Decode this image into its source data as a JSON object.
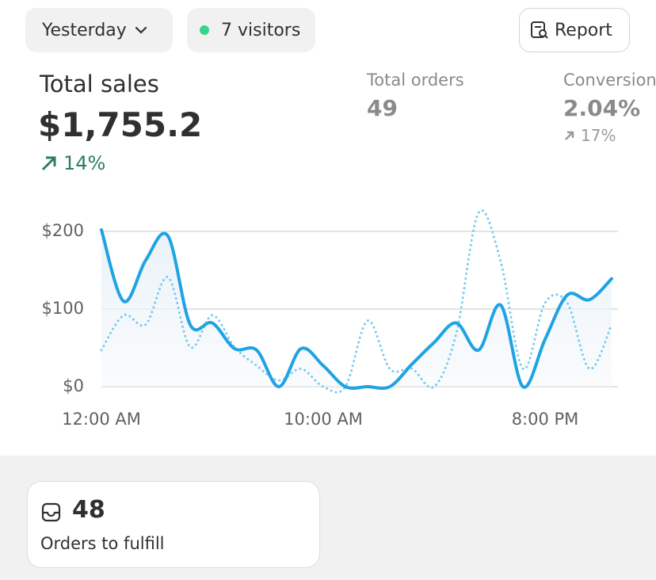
{
  "header": {
    "date_filter": "Yesterday",
    "visitors": "7 visitors",
    "report_button": "Report"
  },
  "metrics": [
    {
      "label": "Total sales",
      "value": "$1,755.2",
      "change": "14%"
    },
    {
      "label": "Total orders",
      "value": "49"
    },
    {
      "label": "Conversion",
      "value": "2.04%",
      "change": "17%"
    }
  ],
  "chart_data": {
    "type": "line",
    "x": [
      0,
      1,
      2,
      3,
      4,
      5,
      6,
      7,
      8,
      9,
      10,
      11,
      12,
      13,
      14,
      15,
      16,
      17,
      18,
      19,
      20,
      21,
      22,
      23
    ],
    "xlim": [
      0,
      23
    ],
    "xticks": [
      {
        "value": 0,
        "label": "12:00 AM"
      },
      {
        "value": 10,
        "label": "10:00 AM"
      },
      {
        "value": 20,
        "label": "8:00 PM"
      }
    ],
    "ylim": [
      0,
      230
    ],
    "yticks": [
      {
        "value": 0,
        "label": "$0"
      },
      {
        "value": 100,
        "label": "$100"
      },
      {
        "value": 200,
        "label": "$200"
      }
    ],
    "grid": true,
    "series": [
      {
        "color": "#1fa3e3",
        "line_style": "solid",
        "area": true,
        "values": [
          202,
          110,
          163,
          194,
          80,
          82,
          49,
          47,
          0,
          49,
          27,
          0,
          0,
          0,
          29,
          57,
          82,
          47,
          105,
          0,
          61,
          118,
          112,
          139
        ]
      },
      {
        "color": "#7ccbee",
        "line_style": "dotted",
        "values": [
          47,
          92,
          80,
          141,
          51,
          92,
          51,
          27,
          8,
          23,
          0,
          0,
          85,
          23,
          23,
          0,
          69,
          224,
          161,
          23,
          108,
          108,
          23,
          80
        ]
      }
    ]
  },
  "task_card": {
    "count": "48",
    "label": "Orders to fulfill"
  }
}
